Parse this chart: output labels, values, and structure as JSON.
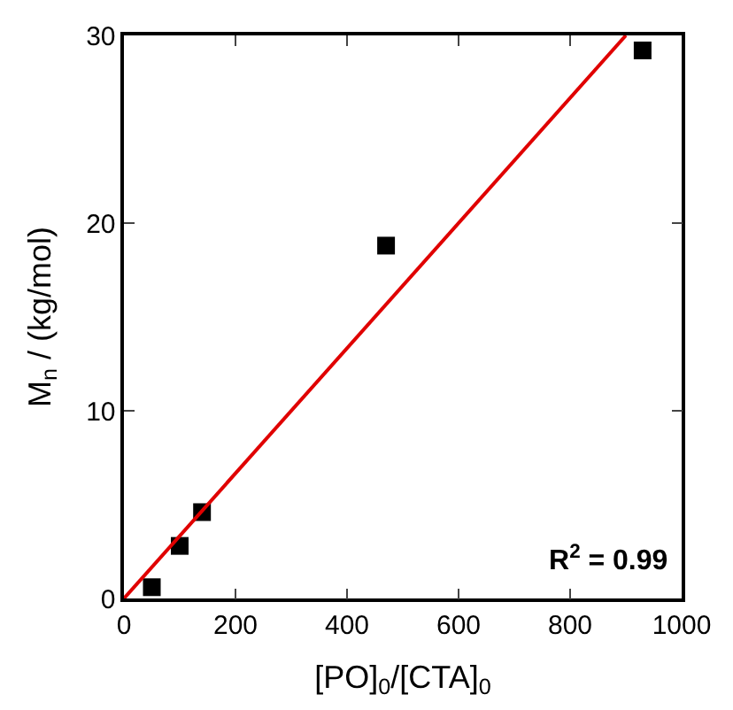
{
  "chart_data": {
    "type": "scatter",
    "xlabel": "[PO]$_{0}$/[CTA]$_{0}$",
    "ylabel": "M$_{n}$ / (kg/mol)",
    "series": [
      {
        "color": "#000000",
        "marker": "square",
        "x": [
          50,
          100,
          140,
          470,
          930
        ],
        "values": [
          0.6,
          2.8,
          4.6,
          18.8,
          29.2
        ]
      },
      {
        "type": "line",
        "color": "#e00000",
        "marker": "none",
        "x": [
          0,
          900
        ],
        "values": [
          0,
          30
        ]
      }
    ],
    "xlim": [
      0,
      1000
    ],
    "xticks": [
      0,
      200,
      400,
      600,
      800,
      1000
    ],
    "ylim": [
      0,
      30
    ],
    "yticks": [
      0,
      10,
      20,
      30
    ],
    "annotations": [
      "R$^{2}$ = 0.99"
    ]
  }
}
